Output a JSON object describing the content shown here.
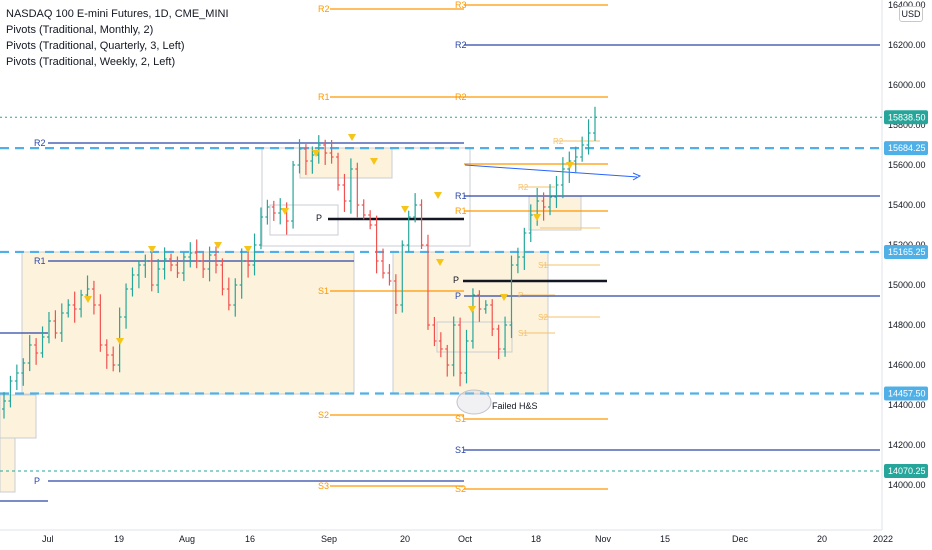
{
  "legend": {
    "title": "NASDAQ 100 E-mini Futures, 1D, CME_MINI",
    "indicators": [
      "Pivots (Traditional, Monthly, 2)",
      "Pivots (Traditional, Quarterly, 3, Left)",
      "Pivots (Traditional, Weekly, 2, Left)"
    ]
  },
  "currency": "USD",
  "annotation": "Failed H&S",
  "colors": {
    "up": "#26a69a",
    "down": "#ef5350",
    "monthly": "#ff9800",
    "quarterly": "#2a46a8",
    "weekly": "#f5c26b",
    "support": "#4fb0e8",
    "marker": "#f5c518",
    "box": "#fdf3dc",
    "box_border": "#c9ccd3",
    "last": "#26a69a"
  },
  "chart_data": {
    "type": "candlestick",
    "y_ticks": [
      "14000.00",
      "14200.00",
      "14400.00",
      "14600.00",
      "14800.00",
      "15000.00",
      "15200.00",
      "15400.00",
      "15600.00",
      "15800.00",
      "16000.00",
      "16200.00",
      "16400.00"
    ],
    "y_range": [
      13700,
      16480
    ],
    "x_ticks": [
      "Jul",
      "19",
      "Aug",
      "16",
      "Sep",
      "20",
      "Oct",
      "18",
      "Nov",
      "15",
      "Dec",
      "20",
      "2022"
    ],
    "last_price": "15838.50",
    "price_levels": [
      "15684.25",
      "15165.25",
      "14457.50",
      "14070.25"
    ],
    "pivot_labels": {
      "monthly": [
        "R3",
        "R2",
        "R2",
        "R1",
        "S1",
        "S2",
        "S3",
        "P",
        "S1",
        "S2"
      ],
      "quarterly": [
        "R2",
        "R1",
        "P",
        "S1",
        "R2",
        "R1",
        "P",
        "S1",
        "P"
      ],
      "weekly": [
        "R2",
        "R2",
        "R1",
        "P",
        "S1",
        "S2",
        "S1"
      ]
    },
    "daily_closes": [
      14420,
      14520,
      14560,
      14610,
      14700,
      14660,
      14740,
      14820,
      14760,
      14860,
      14900,
      14880,
      14950,
      14980,
      14900,
      14700,
      14650,
      14600,
      14840,
      14980,
      15050,
      15100,
      15120,
      15000,
      15080,
      15130,
      15100,
      15060,
      15140,
      15160,
      15120,
      15080,
      15150,
      15100,
      14980,
      14900,
      15000,
      15120,
      15100,
      15200,
      15340,
      15390,
      15360,
      15380,
      15320,
      15600,
      15680,
      15620,
      15650,
      15700,
      15660,
      15640,
      15500,
      15420,
      15580,
      15400,
      15350,
      15300,
      15120,
      15060,
      15020,
      14900,
      15200,
      15340,
      15400,
      15200,
      14800,
      14720,
      14680,
      14600,
      14800,
      14560,
      14720,
      14950,
      14880,
      14900,
      14780,
      14680,
      14800,
      15100,
      15140,
      15260,
      15350,
      15420,
      15390,
      15440,
      15500,
      15580,
      15620,
      15640,
      15700,
      15760,
      15838.5
    ]
  }
}
